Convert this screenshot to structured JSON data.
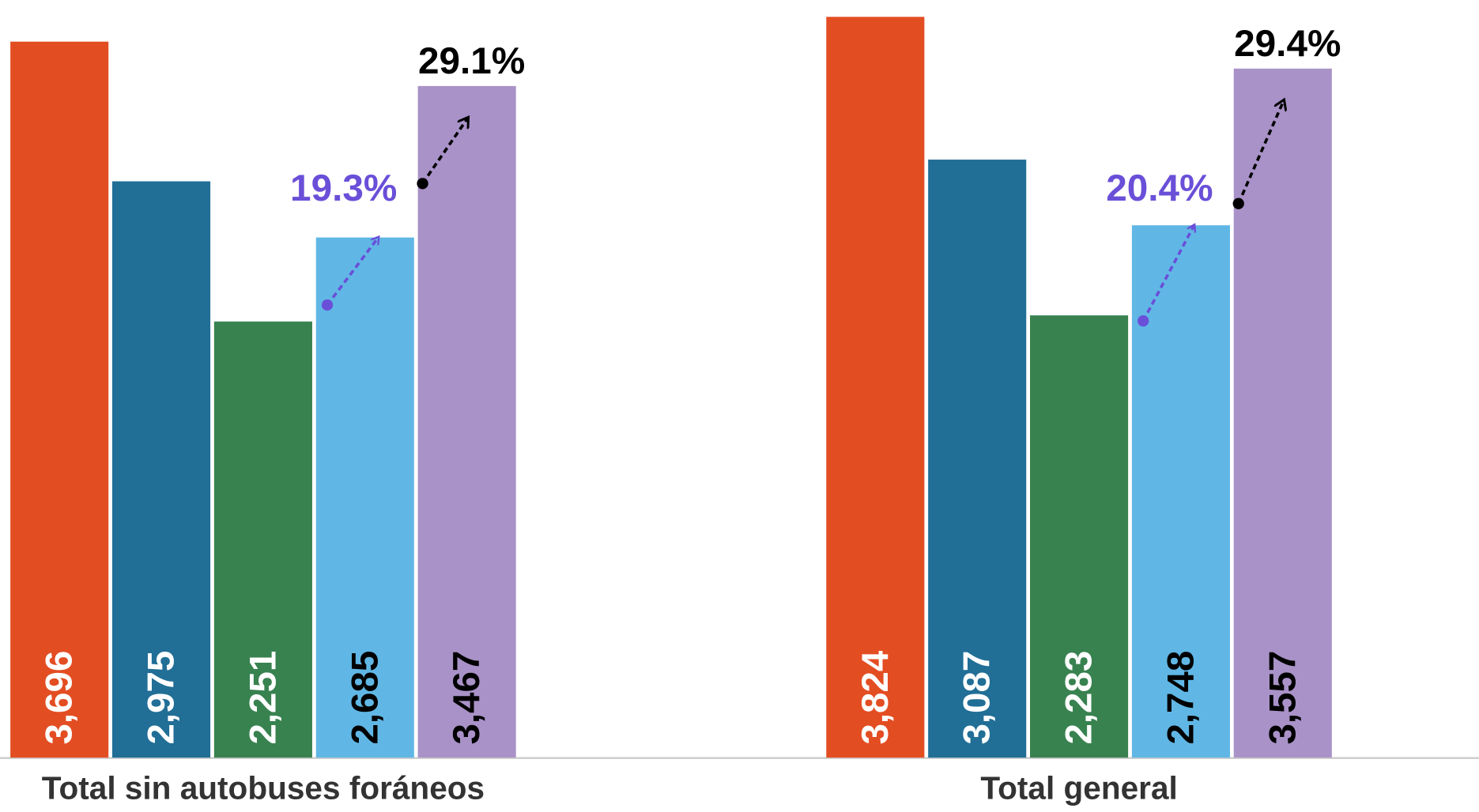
{
  "chart_data": {
    "type": "bar",
    "categories": [
      "Total sin autobuses foráneos",
      "Total general"
    ],
    "series": [
      {
        "color": "#e34d22",
        "label_color": "#ffffff",
        "values": [
          3696,
          3824
        ],
        "value_labels": [
          "3,696",
          "3,824"
        ]
      },
      {
        "color": "#216e96",
        "label_color": "#ffffff",
        "values": [
          2975,
          3087
        ],
        "value_labels": [
          "2,975",
          "3,087"
        ]
      },
      {
        "color": "#388250",
        "label_color": "#ffffff",
        "values": [
          2251,
          2283
        ],
        "value_labels": [
          "2,251",
          "2,283"
        ]
      },
      {
        "color": "#60b7e5",
        "label_color": "#000000",
        "values": [
          2685,
          2748
        ],
        "value_labels": [
          "2,685",
          "2,748"
        ]
      },
      {
        "color": "#a992c8",
        "label_color": "#000000",
        "values": [
          3467,
          3557
        ],
        "value_labels": [
          "3,467",
          "3,557"
        ]
      }
    ],
    "annotations": [
      [
        {
          "text": "19.3%",
          "color": "#6a4fd8"
        },
        {
          "text": "29.1%",
          "color": "#000000"
        }
      ],
      [
        {
          "text": "20.4%",
          "color": "#6a4fd8"
        },
        {
          "text": "29.4%",
          "color": "#000000"
        }
      ]
    ],
    "ylim": [
      0,
      3911
    ]
  }
}
